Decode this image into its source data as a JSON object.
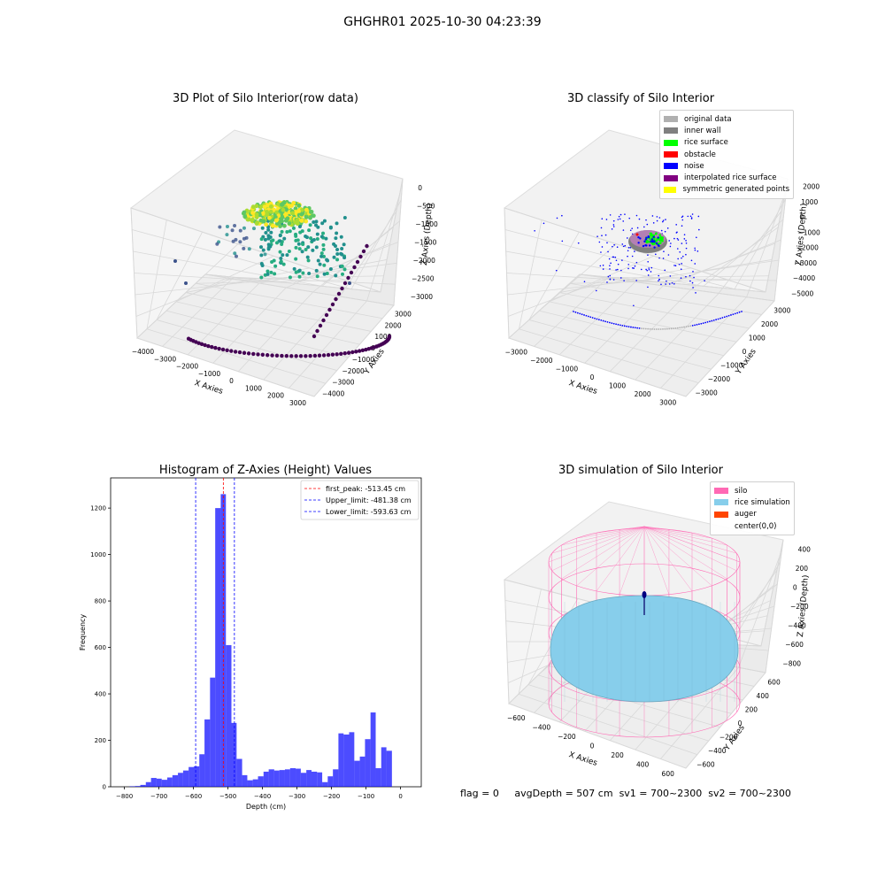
{
  "figure_title": "GHGHR01 2025-10-30 04:23:39",
  "status": {
    "flag": "flag = 0",
    "avg_depth": "avgDepth = 507 cm",
    "sv1": "sv1 = 700~2300",
    "sv2": "sv2 = 700~2300"
  },
  "chart_data": [
    {
      "type": "scatter",
      "title": "3D Plot of Silo Interior(row data)",
      "xlabel": "X Axies",
      "ylabel": "Y Axies",
      "zlabel": "Z Axies (Depth)",
      "x_ticks": [
        "−4000",
        "−3000",
        "−2000",
        "−1000",
        "0",
        "1000",
        "2000",
        "3000"
      ],
      "y_ticks": [
        "−4000",
        "−3000",
        "−2000",
        "−1000",
        "0",
        "1000",
        "2000",
        "3000"
      ],
      "z_ticks": [
        "−3000",
        "−2500",
        "−2000",
        "−1500",
        "−1000",
        "−500",
        "0"
      ],
      "colormap": "viridis"
    },
    {
      "type": "scatter",
      "title": "3D classify of Silo Interior",
      "xlabel": "X Axies",
      "ylabel": "Y Axies",
      "zlabel": "Z Axies (Depth)",
      "x_ticks": [
        "−3000",
        "−2000",
        "−1000",
        "0",
        "1000",
        "2000",
        "3000"
      ],
      "y_ticks": [
        "−3000",
        "−2000",
        "−1000",
        "0",
        "1000",
        "2000",
        "3000"
      ],
      "z_ticks": [
        "−5000",
        "−4000",
        "−3000",
        "−2000",
        "−1000",
        "0",
        "1000",
        "2000"
      ],
      "legend": [
        {
          "label": "original data",
          "color": "#b0b0b0"
        },
        {
          "label": "inner wall",
          "color": "#808080"
        },
        {
          "label": "rice surface",
          "color": "#00ff00"
        },
        {
          "label": "obstacle",
          "color": "#ff0000"
        },
        {
          "label": "noise",
          "color": "#0000ff"
        },
        {
          "label": "interpolated rice surface",
          "color": "#800080"
        },
        {
          "label": "symmetric generated points",
          "color": "#ffff00"
        }
      ],
      "legend_position": "top-right"
    },
    {
      "type": "bar",
      "title": "Histogram of Z-Axies (Height) Values",
      "xlabel": "Depth (cm)",
      "ylabel": "Frequency",
      "xlim": [
        -840,
        60
      ],
      "ylim": [
        0,
        1330
      ],
      "x_ticks": [
        -800,
        -700,
        -600,
        -500,
        -400,
        -300,
        -200,
        -100,
        0
      ],
      "y_ticks": [
        0,
        200,
        400,
        600,
        800,
        1000,
        1200
      ],
      "bar_color": "#0000ff",
      "bins": [
        [
          -785,
          -769,
          2
        ],
        [
          -769,
          -754,
          3
        ],
        [
          -754,
          -738,
          8
        ],
        [
          -738,
          -723,
          20
        ],
        [
          -723,
          -707,
          38
        ],
        [
          -707,
          -692,
          35
        ],
        [
          -692,
          -676,
          30
        ],
        [
          -676,
          -661,
          40
        ],
        [
          -661,
          -645,
          50
        ],
        [
          -645,
          -630,
          60
        ],
        [
          -630,
          -614,
          70
        ],
        [
          -614,
          -599,
          85
        ],
        [
          -599,
          -583,
          88
        ],
        [
          -583,
          -568,
          140
        ],
        [
          -568,
          -552,
          290
        ],
        [
          -552,
          -537,
          470
        ],
        [
          -537,
          -521,
          1200
        ],
        [
          -521,
          -506,
          1260
        ],
        [
          -506,
          -490,
          610
        ],
        [
          -490,
          -475,
          275
        ],
        [
          -475,
          -459,
          120
        ],
        [
          -459,
          -444,
          50
        ],
        [
          -444,
          -428,
          28
        ],
        [
          -428,
          -413,
          32
        ],
        [
          -413,
          -397,
          45
        ],
        [
          -397,
          -382,
          65
        ],
        [
          -382,
          -366,
          75
        ],
        [
          -366,
          -351,
          70
        ],
        [
          -351,
          -335,
          72
        ],
        [
          -335,
          -320,
          75
        ],
        [
          -320,
          -304,
          80
        ],
        [
          -304,
          -289,
          78
        ],
        [
          -289,
          -273,
          60
        ],
        [
          -273,
          -258,
          72
        ],
        [
          -258,
          -242,
          65
        ],
        [
          -242,
          -227,
          62
        ],
        [
          -227,
          -211,
          20
        ],
        [
          -211,
          -196,
          45
        ],
        [
          -196,
          -180,
          75
        ],
        [
          -180,
          -165,
          230
        ],
        [
          -165,
          -149,
          225
        ],
        [
          -149,
          -134,
          235
        ],
        [
          -134,
          -118,
          112
        ],
        [
          -118,
          -103,
          130
        ],
        [
          -103,
          -87,
          205
        ],
        [
          -87,
          -72,
          320
        ],
        [
          -72,
          -56,
          80
        ],
        [
          -56,
          -41,
          170
        ],
        [
          -41,
          -25,
          155
        ]
      ],
      "lines": [
        {
          "label": "first_peak: -513.45 cm",
          "x": -513.45,
          "color": "#ff0000"
        },
        {
          "label": "Upper_limit: -481.38 cm",
          "x": -481.38,
          "color": "#0000ff"
        },
        {
          "label": "Lower_limit: -593.63 cm",
          "x": -593.63,
          "color": "#0000ff"
        }
      ],
      "legend_position": "top-right"
    },
    {
      "type": "surface",
      "title": "3D simulation of Silo Interior",
      "xlabel": "X Axies",
      "ylabel": "Y Axies",
      "zlabel": "Z Axies (Depth)",
      "x_ticks": [
        "−600",
        "−400",
        "−200",
        "0",
        "200",
        "400",
        "600"
      ],
      "y_ticks": [
        "−600",
        "−400",
        "−200",
        "0",
        "200",
        "400",
        "600"
      ],
      "z_ticks": [
        "−800",
        "−600",
        "−400",
        "−200",
        "0",
        "200",
        "400"
      ],
      "legend": [
        {
          "label": "silo",
          "color": "#ff69b4"
        },
        {
          "label": "rice simulation",
          "color": "#87ceeb"
        },
        {
          "label": "auger",
          "color": "#ff4500"
        },
        {
          "label": "center(0,0)",
          "color": ""
        }
      ],
      "legend_position": "top-right"
    }
  ]
}
